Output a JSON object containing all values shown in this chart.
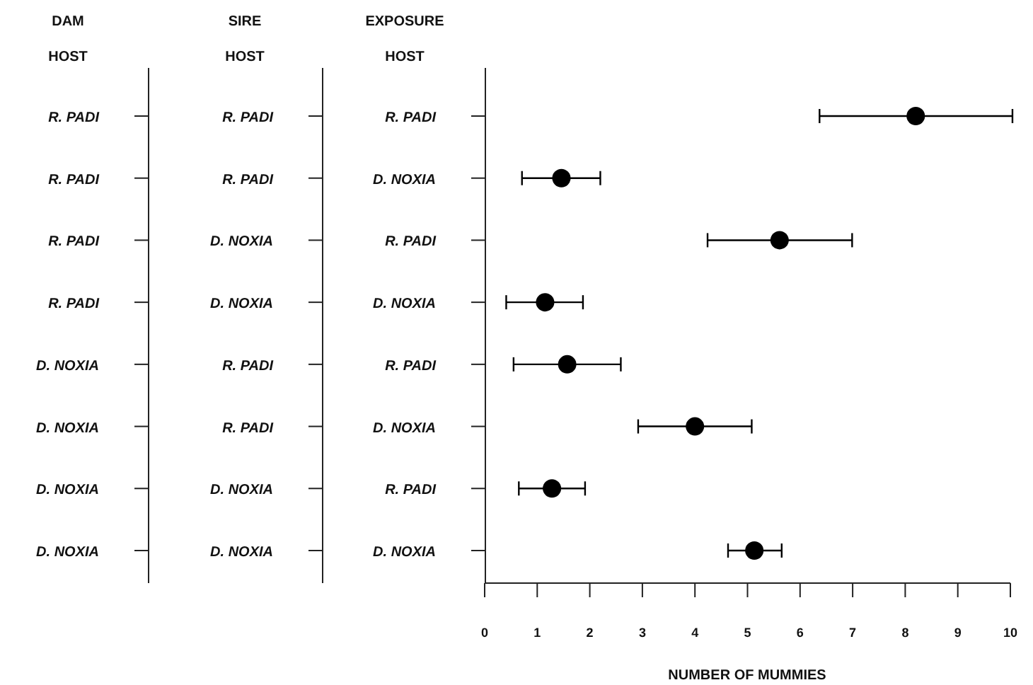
{
  "chart_data": {
    "type": "scatter",
    "orientation": "horizontal",
    "xlabel": "NUMBER OF MUMMIES",
    "ylabel": "EXPOSURE HOST",
    "categories": [
      "R. PADI",
      "D. NOXIA",
      "R. PADI",
      "D. NOXIA",
      "R. PADI",
      "D. NOXIA",
      "R. PADI",
      "D. NOXIA"
    ],
    "values": [
      8.2,
      1.46,
      5.61,
      1.15,
      1.57,
      4.0,
      1.28,
      5.13
    ],
    "errors": [
      [
        6.37,
        10.04
      ],
      [
        0.71,
        2.2
      ],
      [
        4.24,
        6.99
      ],
      [
        0.41,
        1.87
      ],
      [
        0.55,
        2.59
      ],
      [
        2.92,
        5.08
      ],
      [
        0.65,
        1.91
      ],
      [
        4.63,
        5.65
      ]
    ],
    "color": "#000000",
    "marker": "circle",
    "xlim": [
      0,
      10
    ],
    "xticks": [
      0,
      1,
      2,
      3,
      4,
      5,
      6,
      7,
      8,
      9,
      10
    ],
    "annotations": [
      "DAM HOST",
      "R. PADI",
      "R. PADI",
      "R. PADI",
      "R. PADI",
      "D. NOXIA",
      "D. NOXIA",
      "D. NOXIA",
      "D. NOXIA",
      "SIRE HOST",
      "R. PADI",
      "R. PADI",
      "D. NOXIA",
      "D. NOXIA",
      "R. PADI",
      "R. PADI",
      "D. NOXIA",
      "D. NOXIA"
    ]
  }
}
